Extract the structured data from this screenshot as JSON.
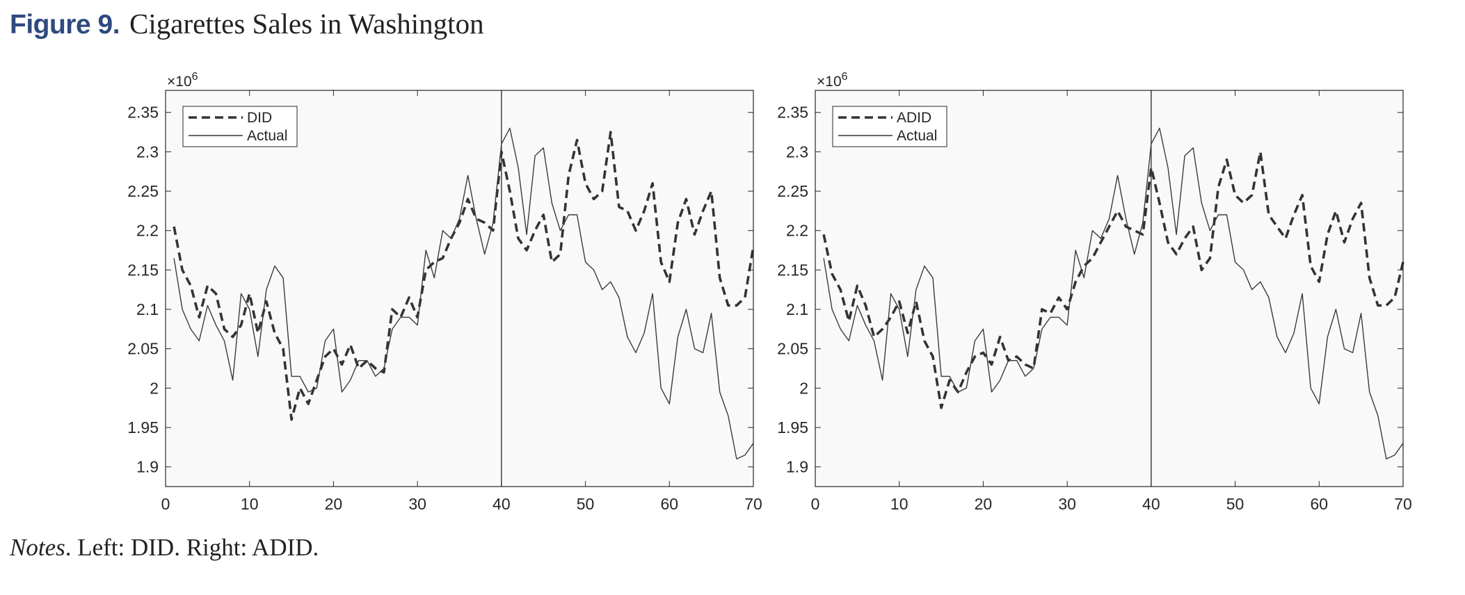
{
  "figure": {
    "label": "Figure 9.",
    "title": "Cigarettes Sales in Washington"
  },
  "notes": {
    "label": "Notes",
    "text": ".  Left: DID. Right: ADID."
  },
  "chart_data": [
    {
      "type": "line",
      "title": "",
      "xlabel": "",
      "ylabel": "",
      "x_ticks": [
        "0",
        "10",
        "20",
        "30",
        "40",
        "50",
        "60",
        "70"
      ],
      "y_ticks": [
        "1.9",
        "1.95",
        "2",
        "2.05",
        "2.1",
        "2.15",
        "2.2",
        "2.25",
        "2.3",
        "2.35"
      ],
      "exponent_label": "×10",
      "exponent_power": "6",
      "xlim": [
        0,
        70
      ],
      "ylim": [
        1.875,
        2.378
      ],
      "grid": false,
      "legend_position": "top-left",
      "vline_x": 40,
      "x": [
        1,
        2,
        3,
        4,
        5,
        6,
        7,
        8,
        9,
        10,
        11,
        12,
        13,
        14,
        15,
        16,
        17,
        18,
        19,
        20,
        21,
        22,
        23,
        24,
        25,
        26,
        27,
        28,
        29,
        30,
        31,
        32,
        33,
        34,
        35,
        36,
        37,
        38,
        39,
        40,
        41,
        42,
        43,
        44,
        45,
        46,
        47,
        48,
        49,
        50,
        51,
        52,
        53,
        54,
        55,
        56,
        57,
        58,
        59,
        60,
        61,
        62,
        63,
        64,
        65,
        66,
        67,
        68,
        69,
        70
      ],
      "series": [
        {
          "name": "DID",
          "style": "dashed",
          "values": [
            2.205,
            2.15,
            2.13,
            2.09,
            2.13,
            2.12,
            2.075,
            2.065,
            2.08,
            2.12,
            2.07,
            2.11,
            2.07,
            2.05,
            1.96,
            2.0,
            1.98,
            2.01,
            2.04,
            2.05,
            2.03,
            2.055,
            2.025,
            2.035,
            2.025,
            2.02,
            2.1,
            2.09,
            2.115,
            2.09,
            2.15,
            2.16,
            2.165,
            2.19,
            2.21,
            2.24,
            2.215,
            2.21,
            2.2,
            2.3,
            2.25,
            2.19,
            2.175,
            2.2,
            2.22,
            2.16,
            2.17,
            2.27,
            2.315,
            2.26,
            2.24,
            2.25,
            2.325,
            2.23,
            2.225,
            2.2,
            2.225,
            2.26,
            2.16,
            2.135,
            2.21,
            2.24,
            2.195,
            2.225,
            2.25,
            2.14,
            2.105,
            2.105,
            2.115,
            2.18
          ]
        },
        {
          "name": "Actual",
          "style": "solid",
          "values": [
            2.165,
            2.1,
            2.075,
            2.06,
            2.105,
            2.08,
            2.06,
            2.01,
            2.12,
            2.1,
            2.04,
            2.125,
            2.155,
            2.14,
            2.015,
            2.015,
            1.995,
            2.0,
            2.06,
            2.075,
            1.995,
            2.01,
            2.035,
            2.035,
            2.015,
            2.025,
            2.075,
            2.09,
            2.09,
            2.08,
            2.175,
            2.14,
            2.2,
            2.19,
            2.215,
            2.27,
            2.215,
            2.17,
            2.21,
            2.31,
            2.33,
            2.28,
            2.195,
            2.295,
            2.305,
            2.235,
            2.2,
            2.22,
            2.22,
            2.16,
            2.15,
            2.125,
            2.135,
            2.115,
            2.065,
            2.045,
            2.07,
            2.12,
            2.0,
            1.98,
            2.065,
            2.1,
            2.05,
            2.045,
            2.095,
            1.995,
            1.965,
            1.91,
            1.915,
            1.93
          ]
        }
      ]
    },
    {
      "type": "line",
      "title": "",
      "xlabel": "",
      "ylabel": "",
      "x_ticks": [
        "0",
        "10",
        "20",
        "30",
        "40",
        "50",
        "60",
        "70"
      ],
      "y_ticks": [
        "1.9",
        "1.95",
        "2",
        "2.05",
        "2.1",
        "2.15",
        "2.2",
        "2.25",
        "2.3",
        "2.35"
      ],
      "exponent_label": "×10",
      "exponent_power": "6",
      "xlim": [
        0,
        70
      ],
      "ylim": [
        1.875,
        2.378
      ],
      "grid": false,
      "legend_position": "top-left",
      "vline_x": 40,
      "x": [
        1,
        2,
        3,
        4,
        5,
        6,
        7,
        8,
        9,
        10,
        11,
        12,
        13,
        14,
        15,
        16,
        17,
        18,
        19,
        20,
        21,
        22,
        23,
        24,
        25,
        26,
        27,
        28,
        29,
        30,
        31,
        32,
        33,
        34,
        35,
        36,
        37,
        38,
        39,
        40,
        41,
        42,
        43,
        44,
        45,
        46,
        47,
        48,
        49,
        50,
        51,
        52,
        53,
        54,
        55,
        56,
        57,
        58,
        59,
        60,
        61,
        62,
        63,
        64,
        65,
        66,
        67,
        68,
        69,
        70
      ],
      "series": [
        {
          "name": "ADID",
          "style": "dashed",
          "values": [
            2.195,
            2.145,
            2.125,
            2.085,
            2.13,
            2.105,
            2.065,
            2.075,
            2.09,
            2.11,
            2.07,
            2.11,
            2.06,
            2.04,
            1.975,
            2.01,
            1.995,
            2.02,
            2.04,
            2.045,
            2.03,
            2.065,
            2.035,
            2.04,
            2.03,
            2.025,
            2.1,
            2.095,
            2.115,
            2.1,
            2.135,
            2.155,
            2.165,
            2.185,
            2.205,
            2.225,
            2.205,
            2.2,
            2.195,
            2.28,
            2.235,
            2.185,
            2.17,
            2.19,
            2.205,
            2.15,
            2.165,
            2.255,
            2.29,
            2.245,
            2.235,
            2.245,
            2.3,
            2.22,
            2.205,
            2.19,
            2.22,
            2.245,
            2.155,
            2.135,
            2.195,
            2.225,
            2.185,
            2.215,
            2.235,
            2.14,
            2.105,
            2.105,
            2.115,
            2.16
          ]
        },
        {
          "name": "Actual",
          "style": "solid",
          "values": [
            2.165,
            2.1,
            2.075,
            2.06,
            2.105,
            2.08,
            2.06,
            2.01,
            2.12,
            2.1,
            2.04,
            2.125,
            2.155,
            2.14,
            2.015,
            2.015,
            1.995,
            2.0,
            2.06,
            2.075,
            1.995,
            2.01,
            2.035,
            2.035,
            2.015,
            2.025,
            2.075,
            2.09,
            2.09,
            2.08,
            2.175,
            2.14,
            2.2,
            2.19,
            2.215,
            2.27,
            2.215,
            2.17,
            2.21,
            2.31,
            2.33,
            2.28,
            2.195,
            2.295,
            2.305,
            2.235,
            2.2,
            2.22,
            2.22,
            2.16,
            2.15,
            2.125,
            2.135,
            2.115,
            2.065,
            2.045,
            2.07,
            2.12,
            2.0,
            1.98,
            2.065,
            2.1,
            2.05,
            2.045,
            2.095,
            1.995,
            1.965,
            1.91,
            1.915,
            1.93
          ]
        }
      ]
    }
  ]
}
